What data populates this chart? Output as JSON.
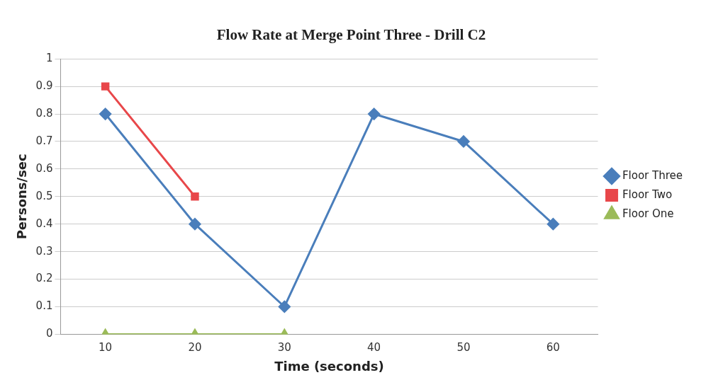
{
  "chart_data": {
    "type": "line",
    "title": "Flow Rate at Merge Point Three - Drill C2",
    "xlabel": "Time (seconds)",
    "ylabel": "Persons/sec",
    "categories": [
      "10",
      "20",
      "30",
      "40",
      "50",
      "60"
    ],
    "series": [
      {
        "name": "Floor Three",
        "color": "#4a7ebb",
        "marker": "diamond",
        "values": [
          0.8,
          0.4,
          0.1,
          0.8,
          0.7,
          0.4
        ]
      },
      {
        "name": "Floor Two",
        "color": "#e8474a",
        "marker": "square",
        "values": [
          0.9,
          0.5,
          null,
          null,
          null,
          null
        ]
      },
      {
        "name": "Floor One",
        "color": "#9bbb59",
        "marker": "triangle",
        "values": [
          0,
          0,
          0,
          null,
          null,
          null
        ]
      }
    ],
    "ylim": [
      0,
      1
    ],
    "yticks": [
      0,
      0.1,
      0.2,
      0.3,
      0.4,
      0.5,
      0.6,
      0.7,
      0.8,
      0.9,
      1
    ],
    "grid": "y",
    "legend": "right",
    "line_style": "solid"
  }
}
